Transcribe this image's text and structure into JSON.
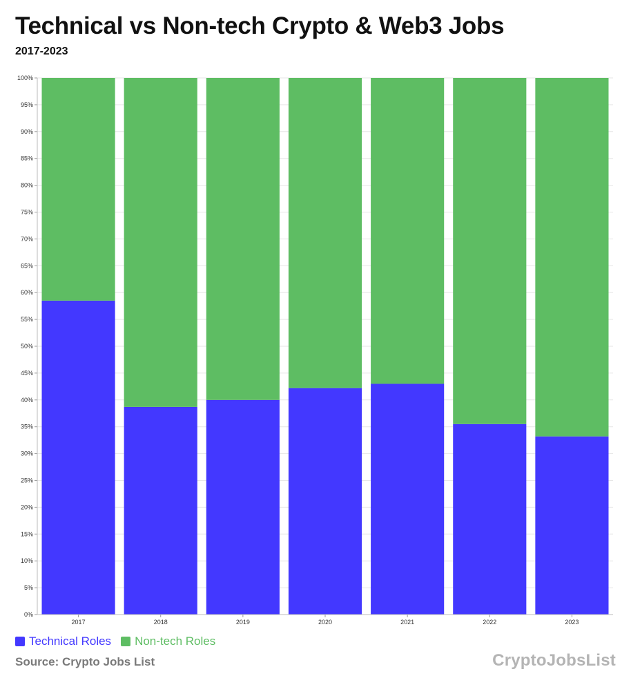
{
  "header": {
    "title": "Technical vs Non-tech Crypto & Web3 Jobs",
    "subtitle": "2017-2023"
  },
  "legend": {
    "items": [
      {
        "label": "Technical Roles",
        "color": "#4338ff"
      },
      {
        "label": "Non-tech Roles",
        "color": "#5ebd63"
      }
    ]
  },
  "footer": {
    "source": "Source: Crypto Jobs List",
    "logo": "CryptoJobsList"
  },
  "chart_data": {
    "type": "bar",
    "stacked": true,
    "categories": [
      "2017",
      "2018",
      "2019",
      "2020",
      "2021",
      "2022",
      "2023"
    ],
    "series": [
      {
        "name": "Technical Roles",
        "color": "#4338ff",
        "values": [
          58.5,
          38.7,
          40.0,
          42.2,
          43.0,
          35.5,
          33.2
        ]
      },
      {
        "name": "Non-tech Roles",
        "color": "#5ebd63",
        "values": [
          41.5,
          61.3,
          60.0,
          57.8,
          57.0,
          64.5,
          66.8
        ]
      }
    ],
    "ylim": [
      0,
      100
    ],
    "yticks": [
      "0%",
      "5%",
      "10%",
      "15%",
      "20%",
      "25%",
      "30%",
      "35%",
      "40%",
      "45%",
      "50%",
      "55%",
      "60%",
      "65%",
      "70%",
      "75%",
      "80%",
      "85%",
      "90%",
      "95%",
      "100%"
    ],
    "grid": true,
    "legend_position": "bottom-left"
  }
}
